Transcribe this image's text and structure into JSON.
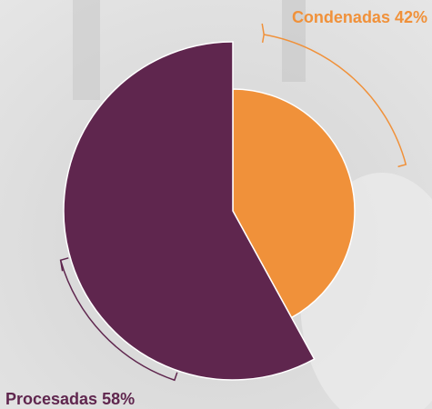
{
  "chart_data": {
    "type": "pie",
    "categories": [
      "Condenadas",
      "Procesadas"
    ],
    "values": [
      42,
      58
    ],
    "value_labels": [
      "42%",
      "58%"
    ],
    "colors": [
      "#f0913a",
      "#5f264e"
    ]
  }
}
